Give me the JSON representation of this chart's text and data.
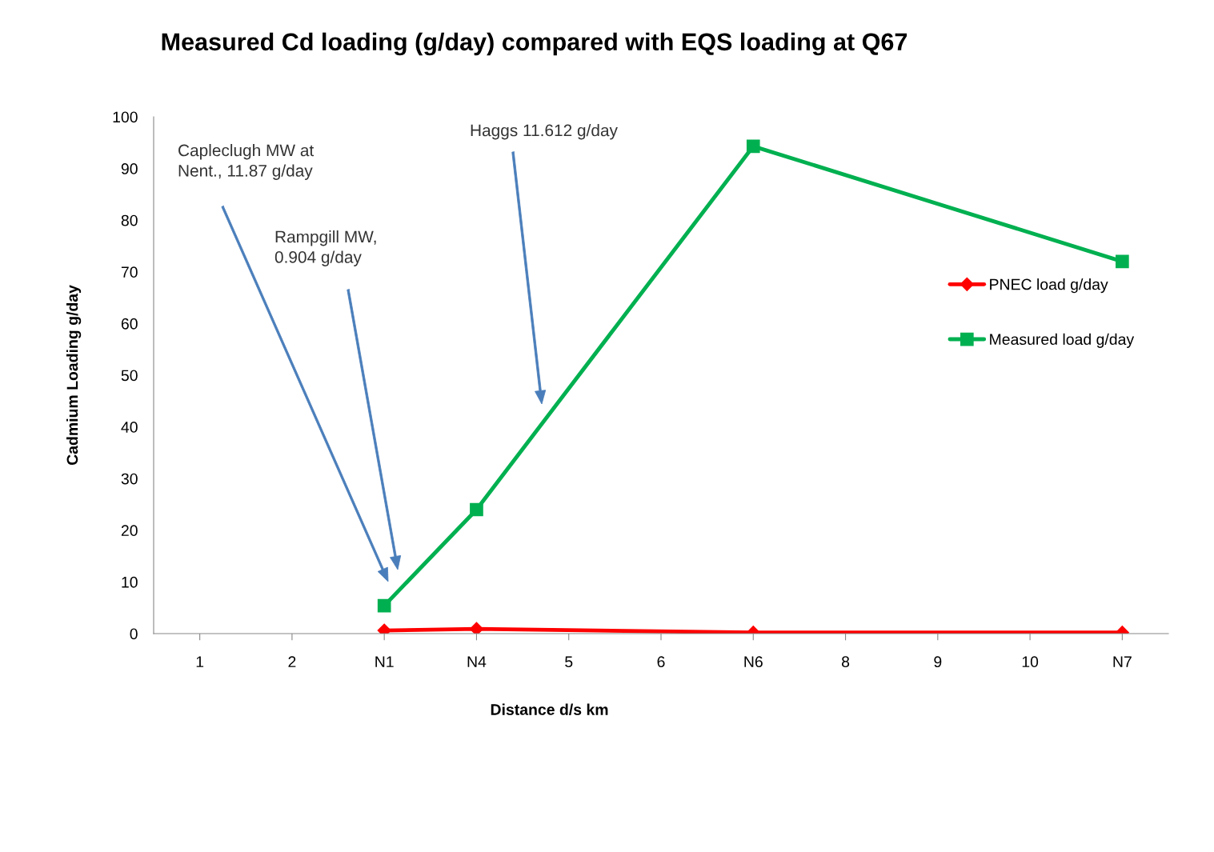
{
  "chart_data": {
    "type": "line",
    "title": "Measured Cd loading (g/day) compared with EQS loading at Q67",
    "xlabel": "Distance d/s km",
    "ylabel": "Cadmium Loading g/day",
    "categories": [
      "1",
      "2",
      "N1",
      "N4",
      "5",
      "6",
      "N6",
      "8",
      "9",
      "10",
      "N7"
    ],
    "series": [
      {
        "name": "PNEC load g/day",
        "color": "#ff0000",
        "marker": "diamond",
        "values": [
          null,
          null,
          0.6,
          0.9,
          null,
          null,
          0.2,
          null,
          null,
          null,
          0.2
        ]
      },
      {
        "name": "Measured load g/day",
        "color": "#00b050",
        "marker": "square",
        "values": [
          null,
          null,
          5.4,
          24.0,
          null,
          null,
          94.3,
          null,
          null,
          null,
          72.0
        ]
      }
    ],
    "ylim": [
      0,
      100
    ],
    "yticks": [
      0,
      10,
      20,
      30,
      40,
      50,
      60,
      70,
      80,
      90,
      100
    ],
    "annotations": [
      "Capleclugh MW at\nNent., 11.87 g/day",
      "Rampgill MW,\n0.904 g/day",
      "Haggs 11.612 g/day"
    ],
    "grid": false,
    "legend": "right"
  }
}
